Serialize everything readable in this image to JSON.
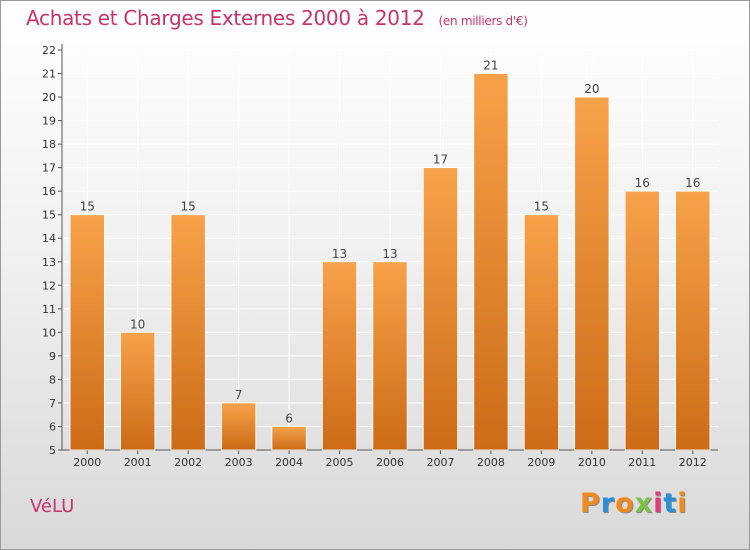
{
  "title": "Achats et Charges Externes 2000 à 2012",
  "subtitle": "(en milliers d'€)",
  "commune": "VéLU",
  "logo": {
    "text": "Proxiti",
    "letter_colors": [
      "#f08a1c",
      "#2a8fd6",
      "#f08a1c",
      "#7cc243",
      "#e33a7a",
      "#2a8fd6",
      "#f08a1c"
    ]
  },
  "colors": {
    "bar_light": "#f7a24a",
    "bar_dark": "#cd6b17",
    "title": "#c8336b"
  },
  "chart_data": {
    "type": "bar",
    "title": "Achats et Charges Externes 2000 à 2012",
    "subtitle": "(en milliers d'€)",
    "categories": [
      "2000",
      "2001",
      "2002",
      "2003",
      "2004",
      "2005",
      "2006",
      "2007",
      "2008",
      "2009",
      "2010",
      "2011",
      "2012"
    ],
    "values": [
      15,
      10,
      15,
      7,
      6,
      13,
      13,
      17,
      21,
      15,
      20,
      16,
      16
    ],
    "data_labels": [
      "15",
      "10",
      "15",
      "7",
      "6",
      "13",
      "13",
      "17",
      "21",
      "15",
      "20",
      "16",
      "16"
    ],
    "ylim": [
      5,
      22
    ],
    "yticks": [
      5,
      6,
      7,
      8,
      9,
      10,
      11,
      12,
      13,
      14,
      15,
      16,
      17,
      18,
      19,
      20,
      21,
      22
    ],
    "xlabel": "",
    "ylabel": "",
    "grid": true
  }
}
